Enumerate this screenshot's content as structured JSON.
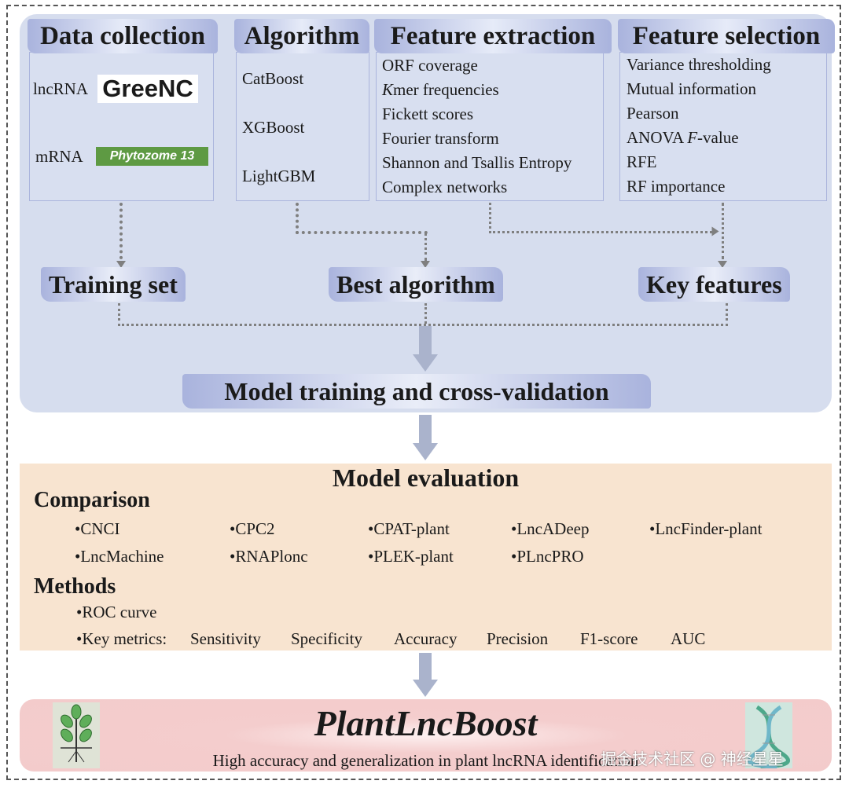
{
  "columns": [
    {
      "title": "Data collection",
      "items": [
        {
          "label": "lncRNA",
          "logo": "GreeNC"
        },
        {
          "label": "mRNA",
          "logo": "Phytozome 13"
        }
      ]
    },
    {
      "title": "Algorithm",
      "items": [
        "CatBoost",
        "XGBoost",
        "LightGBM"
      ]
    },
    {
      "title": "Feature extraction",
      "items": [
        "ORF coverage",
        "mer frequencies",
        "Fickett scores",
        "Fourier transform",
        "Shannon and Tsallis Entropy",
        "Complex networks"
      ],
      "kmer_prefix": "K"
    },
    {
      "title": "Feature selection",
      "items": [
        "Variance thresholding",
        "Mutual information",
        "Pearson",
        "ANOVA ",
        "RFE",
        "RF importance"
      ],
      "anova_f": "F",
      "anova_suffix": "-value"
    }
  ],
  "stages": {
    "training_set": "Training set",
    "best_algorithm": "Best algorithm",
    "key_features": "Key features",
    "model_training": "Model training and cross-validation"
  },
  "evaluation": {
    "title": "Model evaluation",
    "comparison_label": "Comparison",
    "tools": [
      "CNCI",
      "CPC2",
      "CPAT-plant",
      "LncADeep",
      "LncFinder-plant",
      "LncMachine",
      "RNAPlonc",
      "PLEK-plant",
      "PLncPRO"
    ],
    "methods_label": "Methods",
    "roc": "ROC curve",
    "metrics_label": "Key metrics:",
    "metrics": [
      "Sensitivity",
      "Specificity",
      "Accuracy",
      "Precision",
      "F1-score",
      "AUC"
    ]
  },
  "result": {
    "title": "PlantLncBoost",
    "subtitle": "High accuracy and generalization in plant lncRNA identification",
    "icons": [
      "plant-icon",
      "dna-icon"
    ]
  },
  "watermark": "掘金技术社区 @ 神经星星",
  "colors": {
    "top_panel": "#d6ddee",
    "header_band": "#a9b3dd",
    "evaluation_panel": "#f8e4d0",
    "result_panel": "#f3cbcb",
    "arrow": "#aab3cc"
  }
}
